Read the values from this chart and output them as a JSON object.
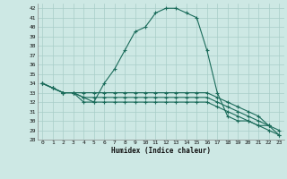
{
  "xlabel": "Humidex (Indice chaleur)",
  "background_color": "#cde8e4",
  "grid_color": "#a8cdc8",
  "line_color": "#1a6b5a",
  "hours": [
    0,
    1,
    2,
    3,
    4,
    5,
    6,
    7,
    8,
    9,
    10,
    11,
    12,
    13,
    14,
    15,
    16,
    17,
    18,
    19,
    20,
    21,
    22,
    23
  ],
  "series1": [
    34,
    33.5,
    33,
    33,
    32,
    32,
    34,
    35.5,
    37.5,
    39.5,
    40,
    41.5,
    42,
    42,
    41.5,
    41,
    37.5,
    33,
    30.5,
    30,
    30,
    29.5,
    29.5,
    null
  ],
  "series2": [
    34,
    33.5,
    33,
    33,
    33,
    33,
    33,
    33,
    33,
    33,
    33,
    33,
    33,
    33,
    33,
    33,
    33,
    32.5,
    32,
    31.5,
    31,
    30.5,
    29.5,
    29
  ],
  "series3": [
    34,
    33.5,
    33,
    33,
    32.5,
    32.5,
    32.5,
    32.5,
    32.5,
    32.5,
    32.5,
    32.5,
    32.5,
    32.5,
    32.5,
    32.5,
    32.5,
    32,
    31.5,
    31,
    30.5,
    30,
    29.5,
    28.5
  ],
  "series4": [
    34,
    33.5,
    33,
    33,
    32.5,
    32,
    32,
    32,
    32,
    32,
    32,
    32,
    32,
    32,
    32,
    32,
    32,
    31.5,
    31,
    30.5,
    30,
    29.5,
    29,
    28.5
  ],
  "ylim": [
    28,
    42.5
  ],
  "yticks": [
    28,
    29,
    30,
    31,
    32,
    33,
    34,
    35,
    36,
    37,
    38,
    39,
    40,
    41,
    42
  ],
  "xticks": [
    0,
    1,
    2,
    3,
    4,
    5,
    6,
    7,
    8,
    9,
    10,
    11,
    12,
    13,
    14,
    15,
    16,
    17,
    18,
    19,
    20,
    21,
    22,
    23
  ]
}
